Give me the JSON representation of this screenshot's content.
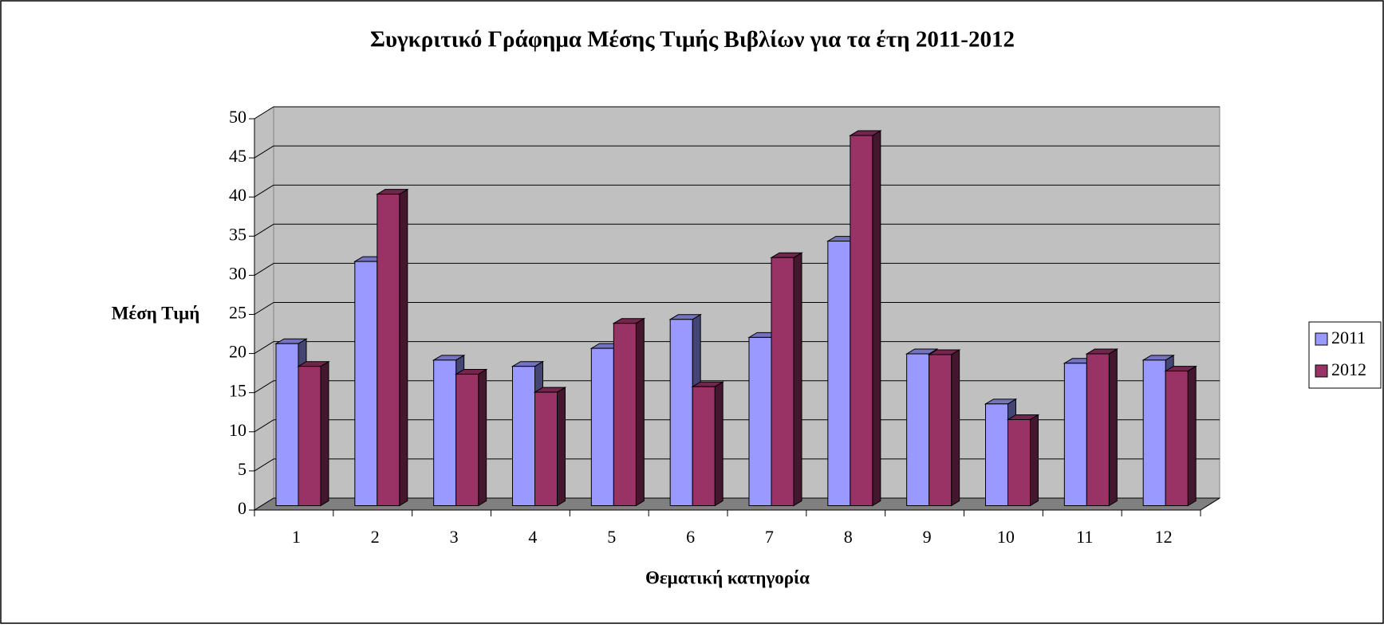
{
  "chart_data": {
    "type": "bar3d",
    "title": "Συγκριτικό Γράφημα Μέσης Τιμής Βιβλίων για τα έτη 2011-2012",
    "xlabel": "Θεματική κατηγορία",
    "ylabel": "Μέση Τιμή",
    "categories": [
      "1",
      "2",
      "3",
      "4",
      "5",
      "6",
      "7",
      "8",
      "9",
      "10",
      "11",
      "12"
    ],
    "series": [
      {
        "name": "2011",
        "color": "#9999ff",
        "values": [
          20.7,
          31.2,
          18.6,
          17.8,
          20.1,
          23.8,
          21.5,
          33.8,
          19.4,
          13.0,
          18.2,
          18.6
        ]
      },
      {
        "name": "2012",
        "color": "#993366",
        "values": [
          17.8,
          39.8,
          16.8,
          14.5,
          23.3,
          15.2,
          31.7,
          47.3,
          19.3,
          11.0,
          19.4,
          17.2
        ]
      }
    ],
    "ylim": [
      0,
      50
    ],
    "yticks": [
      0,
      5,
      10,
      15,
      20,
      25,
      30,
      35,
      40,
      45,
      50
    ],
    "grid": true,
    "legend": "right"
  }
}
